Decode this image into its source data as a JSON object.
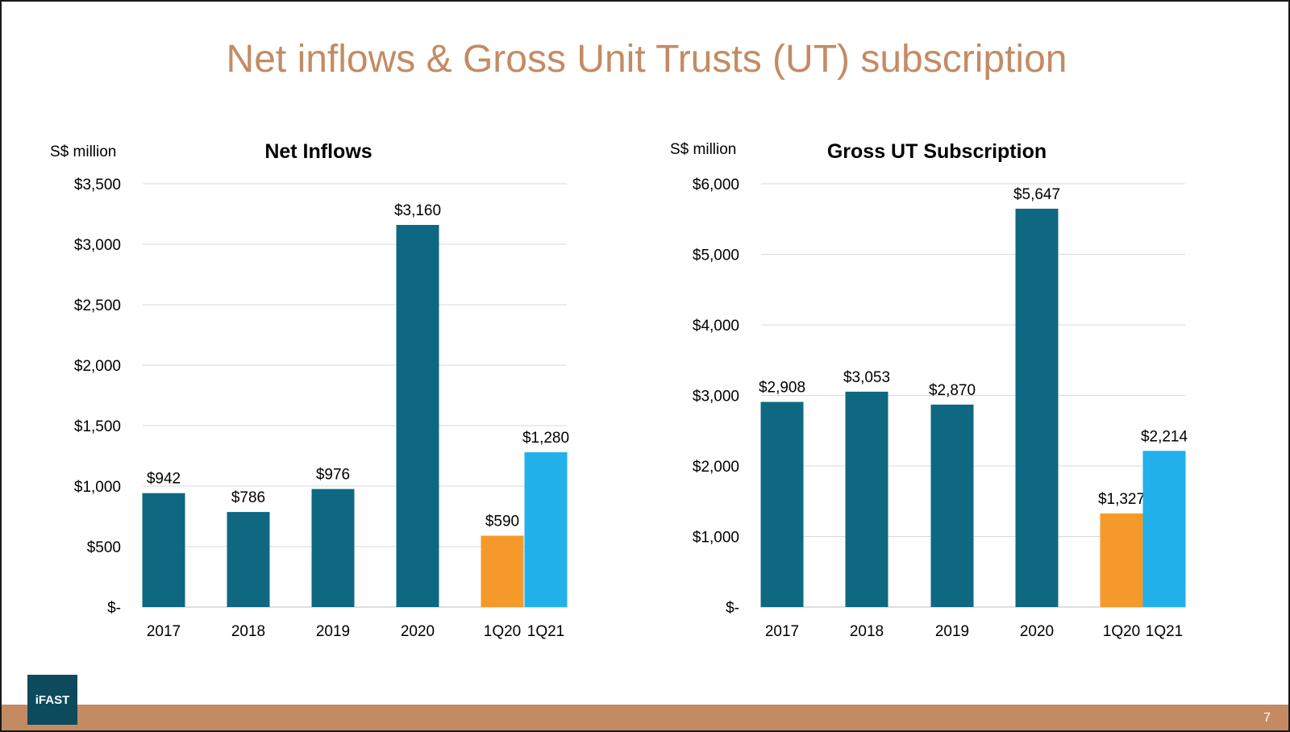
{
  "slide": {
    "title": "Net inflows & Gross Unit Trusts (UT) subscription",
    "page_number": "7",
    "logo_text": "iFAST"
  },
  "colors": {
    "title": "#c48b63",
    "annual_bar": "#0e6882",
    "q1_2020_bar": "#f59a2a",
    "q1_2021_bar": "#22b1ea",
    "grid": "#d9d9d9",
    "footer": "#c48b63",
    "logo_bg": "#0c4a5c"
  },
  "chart_data": [
    {
      "type": "bar",
      "title": "Net Inflows",
      "unit_label": "S$ million",
      "categories": [
        "2017",
        "2018",
        "2019",
        "2020",
        "1Q20",
        "1Q21"
      ],
      "values": [
        942,
        786,
        976,
        3160,
        590,
        1280
      ],
      "value_labels": [
        "$942",
        "$786",
        "$976",
        "$3,160",
        "$590",
        "$1,280"
      ],
      "ylim": [
        0,
        3500
      ],
      "yticks": [
        0,
        500,
        1000,
        1500,
        2000,
        2500,
        3000,
        3500
      ],
      "ytick_labels": [
        "$-",
        "$500",
        "$1,000",
        "$1,500",
        "$2,000",
        "$2,500",
        "$3,000",
        "$3,500"
      ],
      "grid": true
    },
    {
      "type": "bar",
      "title": "Gross UT Subscription",
      "unit_label": "S$ million",
      "categories": [
        "2017",
        "2018",
        "2019",
        "2020",
        "1Q20",
        "1Q21"
      ],
      "values": [
        2908,
        3053,
        2870,
        5647,
        1327,
        2214
      ],
      "value_labels": [
        "$2,908",
        "$3,053",
        "$2,870",
        "$5,647",
        "$1,327",
        "$2,214"
      ],
      "ylim": [
        0,
        6000
      ],
      "yticks": [
        0,
        1000,
        2000,
        3000,
        4000,
        5000,
        6000
      ],
      "ytick_labels": [
        "$-",
        "$1,000",
        "$2,000",
        "$3,000",
        "$4,000",
        "$5,000",
        "$6,000"
      ],
      "grid": true
    }
  ]
}
